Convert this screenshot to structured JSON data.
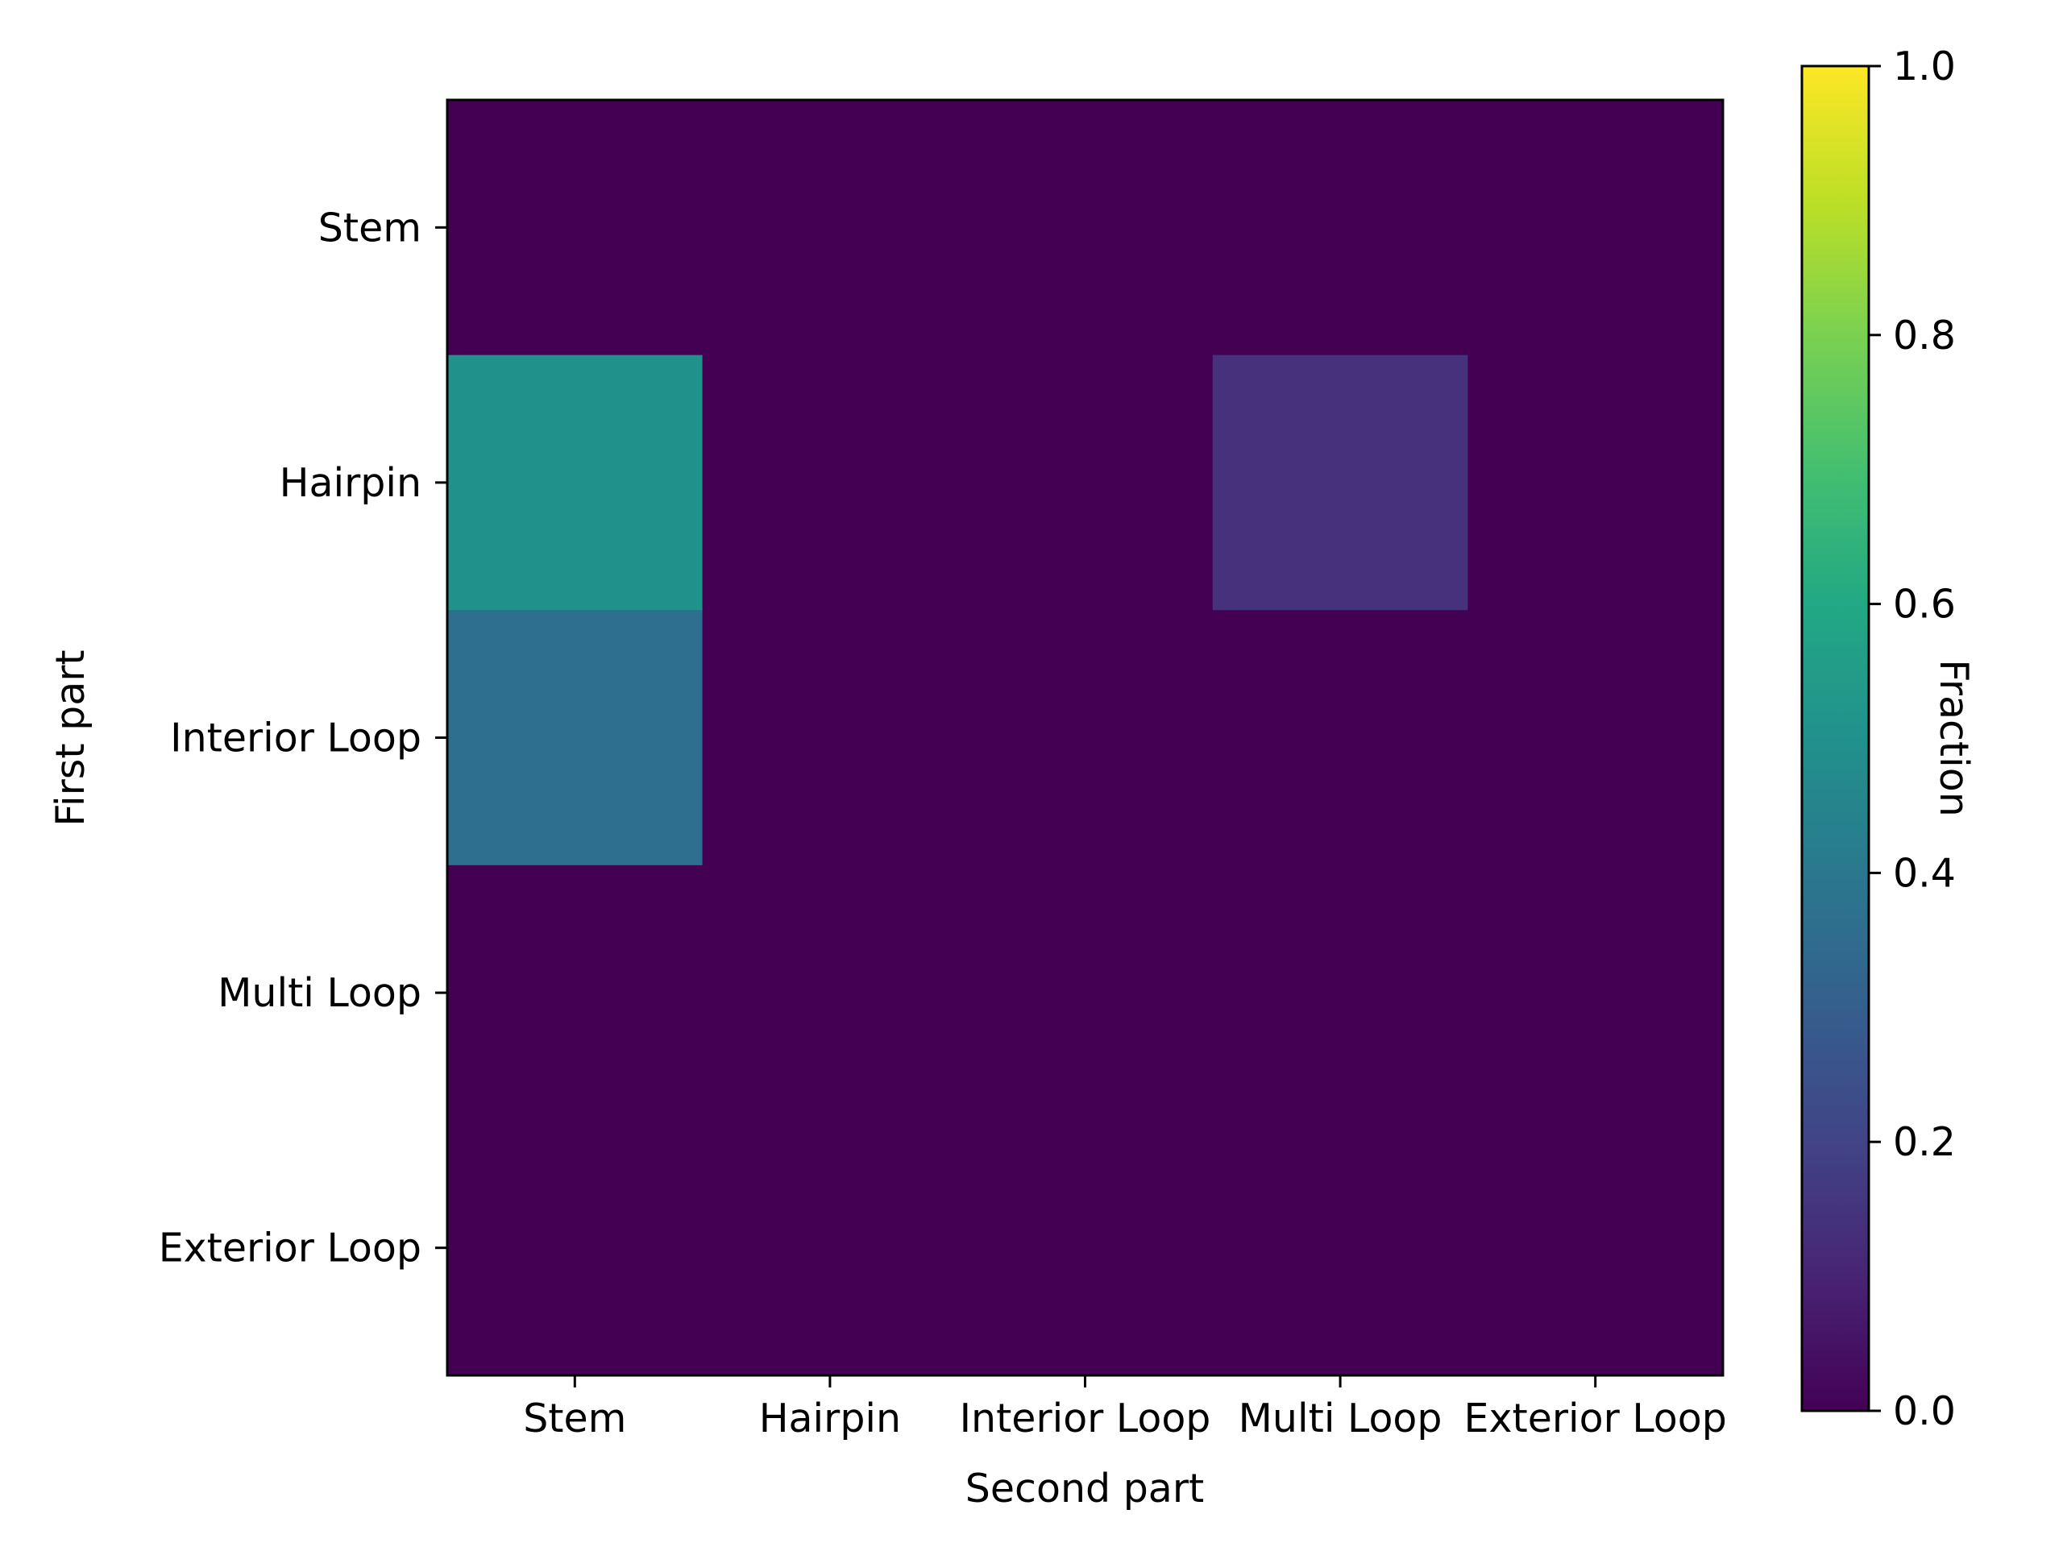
{
  "chart_data": {
    "type": "heatmap",
    "xlabel": "Second part",
    "ylabel": "First part",
    "x_categories": [
      "Stem",
      "Hairpin",
      "Interior Loop",
      "Multi Loop",
      "Exterior Loop"
    ],
    "y_categories": [
      "Stem",
      "Hairpin",
      "Interior Loop",
      "Multi Loop",
      "Exterior Loop"
    ],
    "values": [
      [
        0.0,
        0.0,
        0.0,
        0.0,
        0.0
      ],
      [
        0.5,
        0.0,
        0.0,
        0.14,
        0.0
      ],
      [
        0.36,
        0.0,
        0.0,
        0.0,
        0.0
      ],
      [
        0.0,
        0.0,
        0.0,
        0.0,
        0.0
      ],
      [
        0.0,
        0.0,
        0.0,
        0.0,
        0.0
      ]
    ],
    "colorbar": {
      "label": "Fraction",
      "range": [
        0.0,
        1.0
      ],
      "ticks": [
        "0.0",
        "0.2",
        "0.4",
        "0.6",
        "0.8",
        "1.0"
      ],
      "colormap": "viridis"
    },
    "grid": false
  }
}
